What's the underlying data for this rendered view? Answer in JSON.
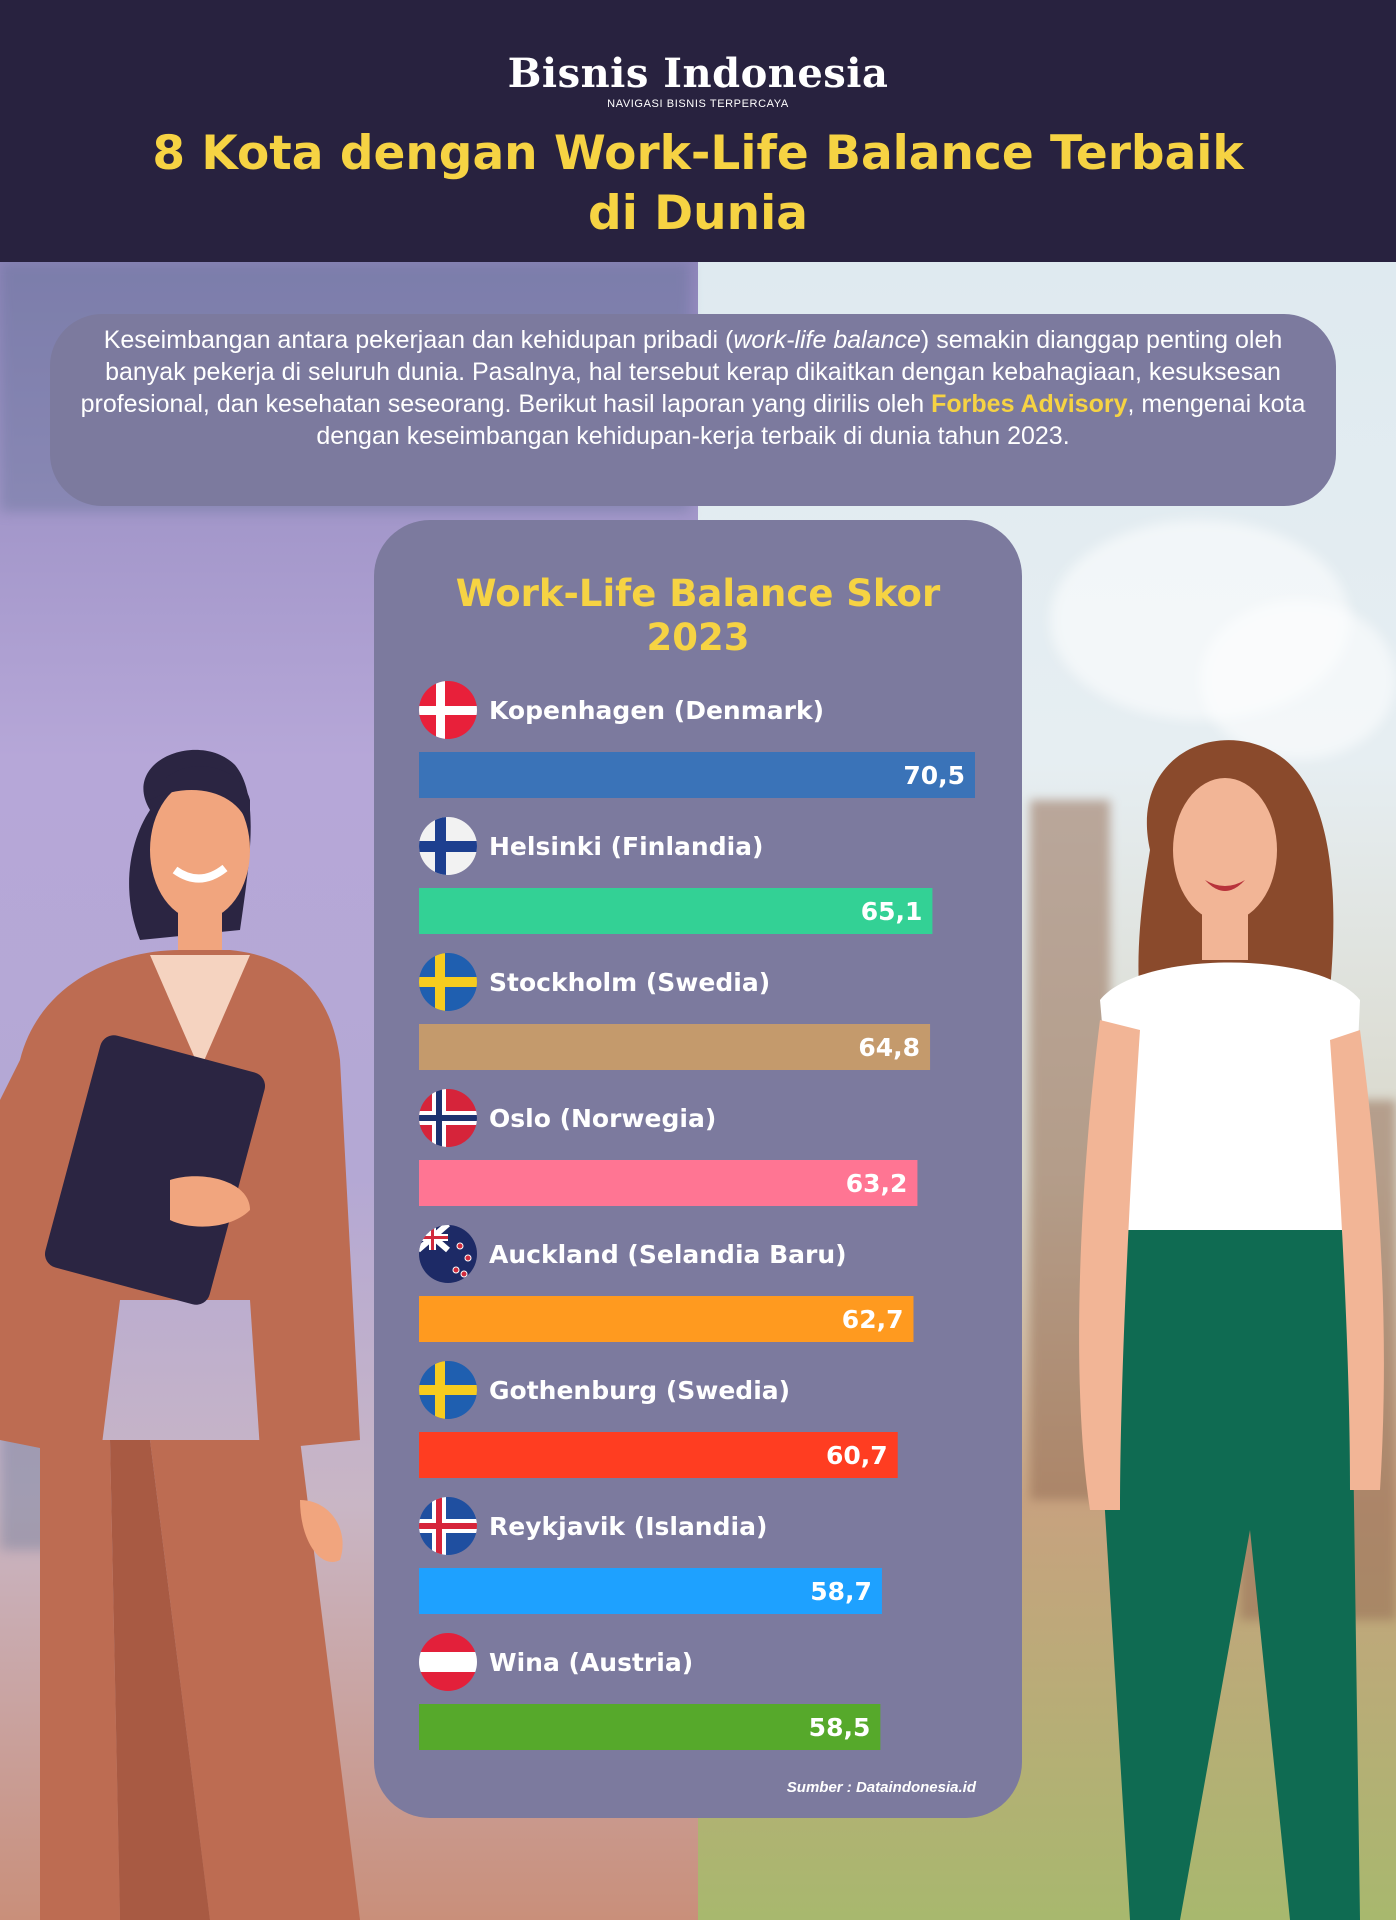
{
  "header": {
    "logo": "Bisnis Indonesia",
    "tagline": "NAVIGASI BISNIS TERPERCAYA",
    "title_line1": "8 Kota dengan Work-Life Balance Terbaik",
    "title_line2": "di Dunia"
  },
  "intro": {
    "part1": "Keseimbangan antara pekerjaan dan kehidupan pribadi (",
    "italic": "work-life balance",
    "part2": ") semakin dianggap penting oleh banyak pekerja di seluruh dunia. Pasalnya, hal tersebut kerap dikaitkan dengan kebahagiaan, kesuksesan profesional, dan kesehatan seseorang. Berikut hasil laporan yang dirilis oleh ",
    "highlight": "Forbes Advisory",
    "part3": ", mengenai kota dengan keseimbangan kehidupan-kerja terbaik di dunia tahun 2023."
  },
  "chart_data": {
    "type": "bar",
    "orientation": "horizontal",
    "title_line1": "Work-Life Balance Skor",
    "title_line2": "2023",
    "categories": [
      "Kopenhagen (Denmark)",
      "Helsinki (Finlandia)",
      "Stockholm (Swedia)",
      "Oslo (Norwegia)",
      "Auckland (Selandia Baru)",
      "Gothenburg (Swedia)",
      "Reykjavik (Islandia)",
      "Wina (Austria)"
    ],
    "values": [
      70.5,
      65.1,
      64.8,
      63.2,
      62.7,
      60.7,
      58.7,
      58.5
    ],
    "value_labels": [
      "70,5",
      "65,1",
      "64,8",
      "63,2",
      "62,7",
      "60,7",
      "58,7",
      "58,5"
    ],
    "flags": [
      "denmark-flag",
      "finland-flag",
      "sweden-flag",
      "norway-flag",
      "new-zealand-flag",
      "sweden-flag",
      "iceland-flag",
      "austria-flag"
    ],
    "colors": [
      "#3a73b8",
      "#33d195",
      "#c49a6c",
      "#ff7593",
      "#ff9a1f",
      "#ff3d21",
      "#1ea1ff",
      "#56a92b"
    ],
    "legend": "none",
    "grid": false
  },
  "source": "Sumber : Dataindonesia.id"
}
